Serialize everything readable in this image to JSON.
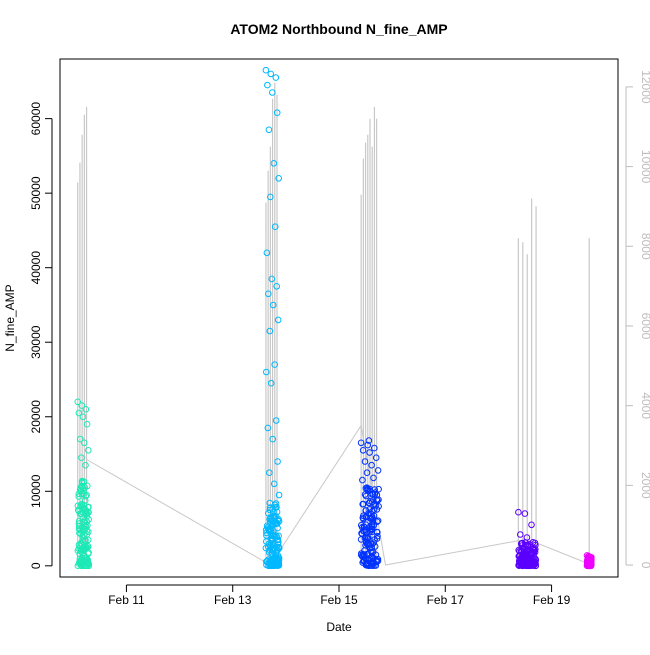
{
  "chart_data": {
    "type": "scatter",
    "title": "ATOM2 Northbound N_fine_AMP",
    "xlabel": "Date",
    "ylabel": "N_fine_AMP",
    "xlim": [
      "2018-02-09 18:00",
      "2018-02-20 06:00"
    ],
    "ylim": [
      -1500,
      68000
    ],
    "y2lim": [
      -300,
      12700
    ],
    "grid": false,
    "x_tick_labels": [
      "Feb 11",
      "Feb 13",
      "Feb 15",
      "Feb 17",
      "Feb 19"
    ],
    "x_tick_dates": [
      "2018-02-11",
      "2018-02-13",
      "2018-02-15",
      "2018-02-17",
      "2018-02-19"
    ],
    "y_ticks": [
      0,
      10000,
      20000,
      30000,
      40000,
      50000,
      60000
    ],
    "y2_ticks": [
      0,
      2000,
      4000,
      6000,
      8000,
      10000,
      12000
    ],
    "series": [
      {
        "color": "#1de9b6",
        "start": "2018-02-10 02:00",
        "end": "2018-02-10 07:00",
        "dense_max": 12000,
        "outliers": [
          22000,
          21500,
          21000,
          20500,
          20000,
          19000,
          17000,
          16500,
          15500,
          14500,
          13500
        ]
      },
      {
        "color": "#00b8ff",
        "start": "2018-02-13 15:00",
        "end": "2018-02-13 21:00",
        "dense_max": 8500,
        "outliers": [
          66500,
          66000,
          65500,
          64500,
          63500,
          60800,
          58500,
          54000,
          52000,
          49500,
          45500,
          42000,
          38500,
          37500,
          36500,
          35000,
          33000,
          31500,
          27000,
          26000,
          24500,
          19500,
          18500,
          17000,
          14000,
          12500,
          11000,
          9500
        ]
      },
      {
        "color": "#0032ff",
        "start": "2018-02-15 10:00",
        "end": "2018-02-15 18:00",
        "dense_max": 10500,
        "outliers": [
          16500,
          16200,
          15800,
          15500,
          15200,
          14500,
          14000,
          13500,
          12800,
          12500,
          11800,
          11500,
          16800
        ]
      },
      {
        "color": "#5a00ff",
        "start": "2018-02-18 09:00",
        "end": "2018-02-18 17:00",
        "dense_max": 3200,
        "outliers": [
          7200,
          7000,
          5500,
          4200,
          3800
        ]
      },
      {
        "color": "#ee00ff",
        "start": "2018-02-19 16:00",
        "end": "2018-02-19 18:00",
        "dense_max": 1200,
        "outliers": [
          1400,
          1300
        ]
      }
    ],
    "right_axis_series": {
      "color": "#c8c8c8",
      "spikes": [
        {
          "t": "2018-02-10 02:00",
          "v": 9600
        },
        {
          "t": "2018-02-10 03:00",
          "v": 10100
        },
        {
          "t": "2018-02-10 04:00",
          "v": 10800
        },
        {
          "t": "2018-02-10 05:00",
          "v": 11300
        },
        {
          "t": "2018-02-10 06:00",
          "v": 11500
        },
        {
          "t": "2018-02-13 15:00",
          "v": 9100
        },
        {
          "t": "2018-02-13 16:00",
          "v": 9900
        },
        {
          "t": "2018-02-13 17:00",
          "v": 10500
        },
        {
          "t": "2018-02-13 18:00",
          "v": 11700
        },
        {
          "t": "2018-02-13 19:00",
          "v": 12100
        },
        {
          "t": "2018-02-13 20:00",
          "v": 11800
        },
        {
          "t": "2018-02-15 10:00",
          "v": 9300
        },
        {
          "t": "2018-02-15 11:00",
          "v": 10200
        },
        {
          "t": "2018-02-15 12:00",
          "v": 10600
        },
        {
          "t": "2018-02-15 13:00",
          "v": 10800
        },
        {
          "t": "2018-02-15 14:00",
          "v": 11200
        },
        {
          "t": "2018-02-15 15:00",
          "v": 10500
        },
        {
          "t": "2018-02-15 16:00",
          "v": 11500
        },
        {
          "t": "2018-02-15 17:00",
          "v": 11200
        },
        {
          "t": "2018-02-18 09:00",
          "v": 8200
        },
        {
          "t": "2018-02-18 11:00",
          "v": 8100
        },
        {
          "t": "2018-02-18 13:00",
          "v": 7800
        },
        {
          "t": "2018-02-18 15:00",
          "v": 9200
        },
        {
          "t": "2018-02-18 17:00",
          "v": 9000
        },
        {
          "t": "2018-02-19 17:00",
          "v": 8200
        }
      ],
      "trend": [
        {
          "t": "2018-02-10 06:00",
          "v": 2650
        },
        {
          "t": "2018-02-13 17:00",
          "v": 0
        },
        {
          "t": "2018-02-15 10:00",
          "v": 3500
        },
        {
          "t": "2018-02-15 21:00",
          "v": 0
        },
        {
          "t": "2018-02-18 13:00",
          "v": 650
        },
        {
          "t": "2018-02-19 16:00",
          "v": 50
        }
      ]
    }
  }
}
